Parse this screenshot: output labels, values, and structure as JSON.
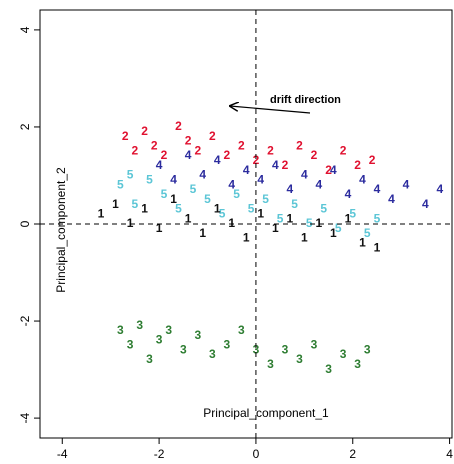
{
  "chart_data": {
    "type": "scatter",
    "xlabel": "Principal_component_1",
    "ylabel": "Principal_component_2",
    "annotation": "drift direction",
    "xlim": [
      -4.46,
      4.05
    ],
    "ylim": [
      -4.41,
      4.41
    ],
    "xticks": [
      -4,
      -2,
      0,
      2,
      4
    ],
    "yticks": [
      -4,
      -2,
      0,
      2,
      4
    ],
    "series": [
      {
        "name": "2",
        "color": "#e0102f",
        "x": [
          -2.7,
          -2.5,
          -2.3,
          -2.1,
          -1.9,
          -1.6,
          -1.4,
          -1.2,
          -0.9,
          -0.6,
          -0.3,
          0,
          0.3,
          0.6,
          0.9,
          1.2,
          1.5,
          1.8,
          2.1,
          2.4
        ],
        "values": [
          1.8,
          1.5,
          1.9,
          1.6,
          1.4,
          2.0,
          1.7,
          1.5,
          1.8,
          1.4,
          1.6,
          1.3,
          1.5,
          1.2,
          1.6,
          1.4,
          1.1,
          1.5,
          1.2,
          1.3
        ]
      },
      {
        "name": "4",
        "color": "#2b2b9e",
        "x": [
          -2.0,
          -1.7,
          -1.4,
          -1.1,
          -0.8,
          -0.5,
          -0.2,
          0.1,
          0.4,
          0.7,
          1.0,
          1.3,
          1.6,
          1.9,
          2.2,
          2.5,
          2.8,
          3.1,
          3.5,
          3.8
        ],
        "values": [
          1.2,
          0.9,
          1.4,
          1.0,
          1.3,
          0.8,
          1.1,
          0.9,
          1.2,
          0.7,
          1.0,
          0.8,
          1.1,
          0.6,
          0.9,
          0.7,
          0.5,
          0.8,
          0.4,
          0.7
        ]
      },
      {
        "name": "5",
        "color": "#5cc6d6",
        "x": [
          -2.8,
          -2.5,
          -2.2,
          -1.9,
          -1.6,
          -1.3,
          -1.0,
          -0.7,
          -0.4,
          -0.1,
          0.2,
          0.5,
          0.8,
          1.1,
          1.4,
          1.7,
          2.0,
          2.3,
          2.5,
          -2.6
        ],
        "values": [
          0.8,
          0.4,
          0.9,
          0.6,
          0.3,
          0.7,
          0.5,
          0.2,
          0.6,
          0.3,
          0.5,
          0.1,
          0.4,
          0.0,
          0.3,
          -0.1,
          0.2,
          -0.2,
          0.1,
          1.0
        ]
      },
      {
        "name": "1",
        "color": "#111111",
        "x": [
          -3.2,
          -2.9,
          -2.6,
          -2.3,
          -2.0,
          -1.7,
          -1.4,
          -1.1,
          -0.8,
          -0.5,
          -0.2,
          0.1,
          0.4,
          0.7,
          1.0,
          1.3,
          1.6,
          1.9,
          2.2,
          2.5
        ],
        "values": [
          0.2,
          0.4,
          0.0,
          0.3,
          -0.1,
          0.5,
          0.1,
          -0.2,
          0.3,
          0.0,
          -0.3,
          0.2,
          -0.1,
          0.1,
          -0.3,
          0.0,
          -0.2,
          0.1,
          -0.4,
          -0.5
        ]
      },
      {
        "name": "3",
        "color": "#2e7d32",
        "x": [
          -2.8,
          -2.6,
          -2.4,
          -2.2,
          -2.0,
          -1.8,
          -1.5,
          -1.2,
          -0.9,
          -0.6,
          -0.3,
          0,
          0.3,
          0.6,
          0.9,
          1.2,
          1.5,
          1.8,
          2.1,
          2.3
        ],
        "values": [
          -2.2,
          -2.5,
          -2.1,
          -2.8,
          -2.4,
          -2.2,
          -2.6,
          -2.3,
          -2.7,
          -2.5,
          -2.2,
          -2.6,
          -2.9,
          -2.6,
          -2.8,
          -2.5,
          -3.0,
          -2.7,
          -2.9,
          -2.6
        ]
      }
    ]
  }
}
